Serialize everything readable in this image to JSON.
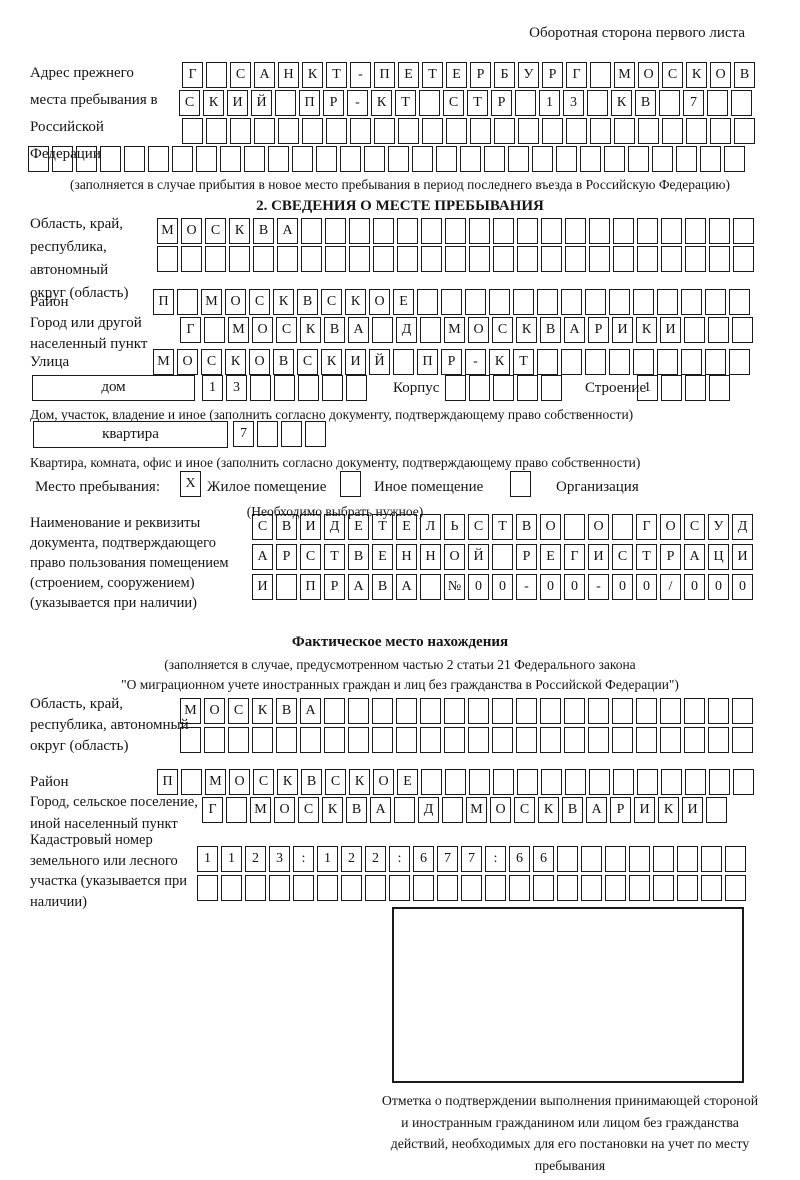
{
  "page_title": "Оборотная сторона первого листа",
  "prev_address": {
    "label": "Адрес прежнего места пребывания в Российской Федерации",
    "rows": [
      "Г САНКТ-ПЕТЕРБУРГ МОСКОВ",
      "СКИЙ ПР-КТ СТР 13 КВ 7",
      "",
      ""
    ],
    "note": "(заполняется в случае прибытия в новое место пребывания в период последнего въезда в Российскую Федерацию)"
  },
  "section2": {
    "title": "2. СВЕДЕНИЯ О МЕСТЕ ПРЕБЫВАНИЯ",
    "region": {
      "label": "Область, край, республика, автономный округ (область)",
      "rows": [
        "МОСКВА",
        ""
      ]
    },
    "district": {
      "label": "Район",
      "value": "П МОСКВСКОЕ"
    },
    "city": {
      "label": "Город или другой населенный пункт",
      "value": "Г МОСКВА Д МОСКВАРИКИ"
    },
    "street": {
      "label": "Улица",
      "value": "МОСКОВСКИЙ ПР-КТ"
    },
    "house": {
      "box_label": "дом",
      "cells": "13",
      "korpus_label": "Корпус",
      "korpus_cells": "",
      "stroenie_label": "Строение",
      "stroenie_cells": "1",
      "note": "Дом, участок, владение и иное (заполнить согласно документу, подтверждающему право собственности)"
    },
    "apartment": {
      "box_label": "квартира",
      "cells": "7",
      "note": "Квартира, комната, офис и иное (заполнить согласно документу, подтверждающему право собственности)"
    },
    "stay_type": {
      "label": "Место пребывания:",
      "options": [
        {
          "mark": "X",
          "label": "Жилое помещение"
        },
        {
          "mark": "",
          "label": "Иное помещение"
        },
        {
          "mark": "",
          "label": "Организация"
        }
      ],
      "note": "(Необходимо выбрать нужное)"
    },
    "document": {
      "label": "Наименование и реквизиты документа, подтверждающего право пользования помещением (строением, сооружением) (указывается при наличии)",
      "rows": [
        "СВИДЕТЕЛЬСТВО О ГОСУД",
        "АРСТВЕННОЙ РЕГИСТРАЦИ",
        "И ПРАВА №00-00-00/000"
      ]
    }
  },
  "actual_location": {
    "title": "Фактическое место нахождения",
    "note_lines": [
      "(заполняется в случае, предусмотренном частью 2 статьи 21 Федерального закона",
      "\"О миграционном учете иностранных граждан и лиц без гражданства в Российской Федерации\")"
    ],
    "region": {
      "label": "Область, край, республика, автономный округ (область)",
      "rows": [
        "МОСКВА",
        ""
      ]
    },
    "district": {
      "label": "Район",
      "value": "П МОСКВСКОЕ"
    },
    "city": {
      "label": "Город, сельское поселение, иной населенный пункт",
      "value": "Г МОСКВА Д МОСКВАРИКИ"
    },
    "cadastre": {
      "label": "Кадастровый номер земельного или лесного участка (указывается при наличии)",
      "rows": [
        "1123:122:677:66",
        ""
      ]
    }
  },
  "stamp": {
    "caption": "Отметка о подтверждении выполнения принимающей стороной и иностранным гражданином или лицом без гражданства действий, необходимых для его постановки на учет по месту пребывания"
  }
}
